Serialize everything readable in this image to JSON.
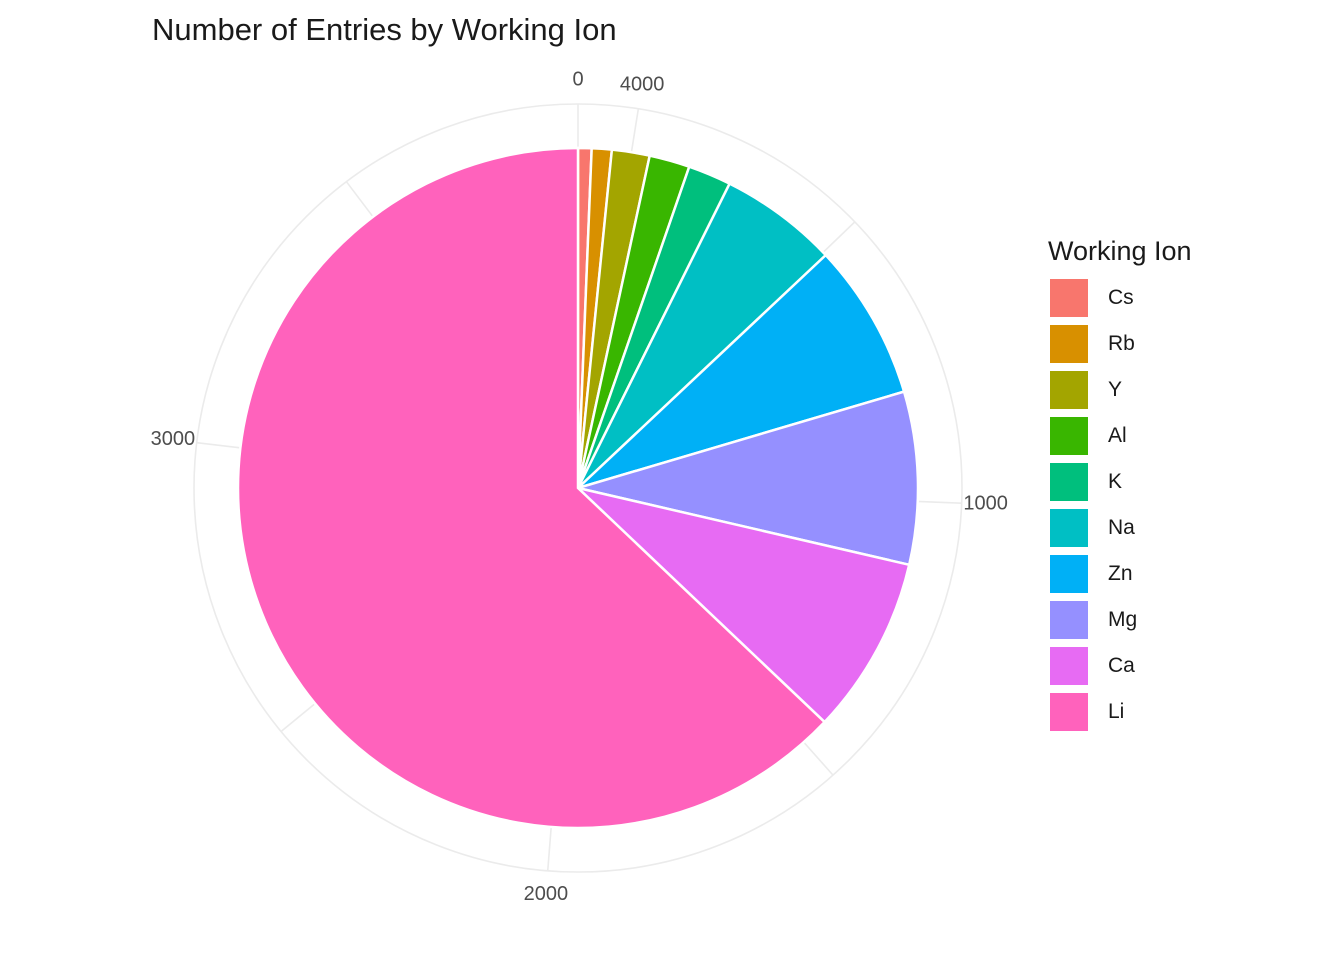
{
  "chart_data": {
    "type": "pie",
    "title": "Number of Entries by Working Ion",
    "legend_title": "Working Ion",
    "legend_position": "right",
    "categories": [
      "Cs",
      "Rb",
      "Y",
      "Al",
      "K",
      "Na",
      "Zn",
      "Mg",
      "Ca",
      "Li"
    ],
    "values": [
      25,
      37,
      70,
      75,
      80,
      220,
      290,
      320,
      330,
      2455
    ],
    "colors": [
      "#F8766D",
      "#D89000",
      "#A3A500",
      "#39B600",
      "#00BF7D",
      "#00BFC4",
      "#00B0F6",
      "#9590FF",
      "#E76BF3",
      "#FF62BC"
    ],
    "angle_ticks": [
      0,
      1000,
      2000,
      3000,
      4000
    ],
    "angle_tick_labels": [
      "0",
      "1000",
      "2000",
      "3000",
      "4000"
    ],
    "grid": true
  }
}
